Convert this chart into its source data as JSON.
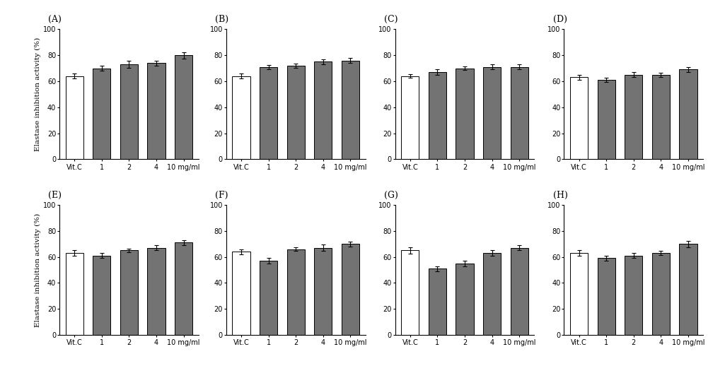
{
  "panels": [
    "(A)",
    "(B)",
    "(C)",
    "(D)",
    "(E)",
    "(F)",
    "(G)",
    "(H)"
  ],
  "xlabels": [
    "Vit.C",
    "1",
    "2",
    "4",
    "10 mg/ml"
  ],
  "ylabel": "Elastase inhibition activity (%)",
  "ylim": [
    0,
    100
  ],
  "yticks": [
    0,
    20,
    40,
    60,
    80,
    100
  ],
  "bar_values": [
    [
      64,
      70,
      73,
      74,
      80
    ],
    [
      64,
      71,
      72,
      75,
      76
    ],
    [
      64,
      67,
      70,
      71,
      71
    ],
    [
      63,
      61,
      65,
      65,
      69
    ],
    [
      63,
      61,
      65,
      67,
      71
    ],
    [
      64,
      57,
      66,
      67,
      70
    ],
    [
      65,
      51,
      55,
      63,
      67
    ],
    [
      63,
      59,
      61,
      63,
      70
    ]
  ],
  "bar_errors": [
    [
      2.0,
      2.0,
      2.5,
      2.0,
      2.5
    ],
    [
      2.0,
      1.5,
      1.5,
      2.0,
      2.0
    ],
    [
      1.5,
      2.0,
      1.5,
      2.0,
      2.0
    ],
    [
      2.0,
      1.5,
      2.0,
      1.5,
      2.0
    ],
    [
      2.0,
      2.0,
      1.5,
      2.0,
      2.0
    ],
    [
      2.0,
      2.0,
      1.5,
      2.5,
      2.0
    ],
    [
      2.5,
      2.0,
      2.0,
      2.0,
      2.0
    ],
    [
      2.0,
      2.0,
      2.0,
      1.5,
      2.5
    ]
  ],
  "vitc_color": "#ffffff",
  "bar_color": "#737373",
  "bar_edgecolor": "#000000",
  "background_color": "#ffffff",
  "panel_fontsize": 9,
  "tick_fontsize": 7,
  "ylabel_fontsize": 7.5
}
